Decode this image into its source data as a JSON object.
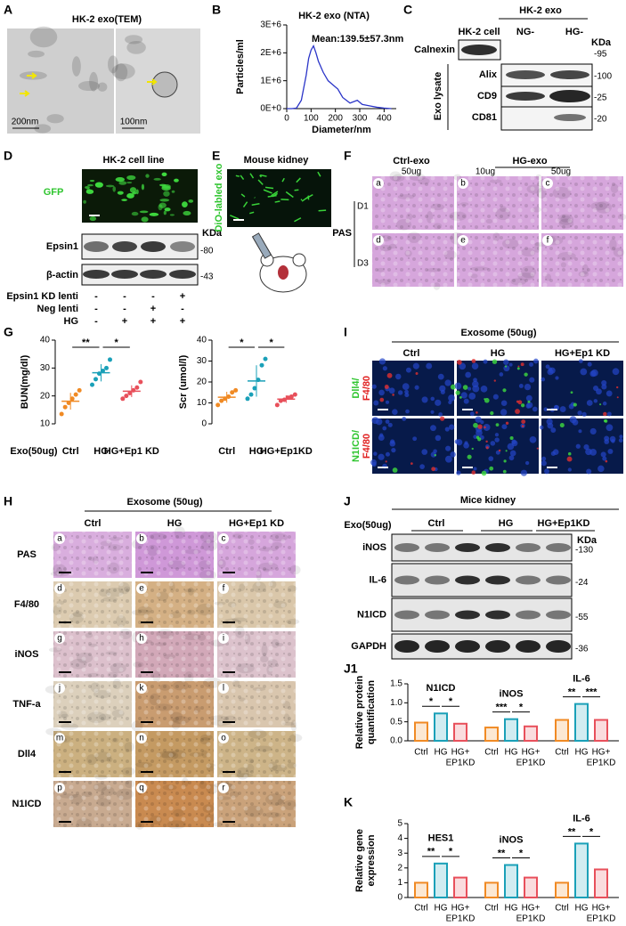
{
  "panel_labels": [
    "A",
    "B",
    "C",
    "D",
    "E",
    "F",
    "G",
    "I",
    "H",
    "J",
    "J1",
    "K"
  ],
  "A": {
    "title": "HK-2 exo(TEM)",
    "scale_left": "200nm",
    "scale_right": "100nm"
  },
  "C": {
    "group": "HK-2 exo",
    "lanes": [
      "HK-2 cell",
      "NG-",
      "HG-"
    ],
    "unit": "KDa",
    "rows": [
      "Calnexin",
      "Alix",
      "CD9",
      "CD81"
    ],
    "sizes": [
      "-95",
      "-100",
      "-25",
      "-20"
    ],
    "bracket": "Exo lysate"
  },
  "D": {
    "title": "HK-2 cell line",
    "stain": "GFP",
    "rows": [
      "Epsin1",
      "β-actin"
    ],
    "unit": "KDa",
    "sizes": [
      "-80",
      "-43"
    ],
    "conditions": [
      {
        "name": "Epsin1 KD lenti",
        "marks": [
          "-",
          "-",
          "-",
          "+"
        ]
      },
      {
        "name": "Neg lenti",
        "marks": [
          "-",
          "-",
          "+",
          "-"
        ]
      },
      {
        "name": "HG",
        "marks": [
          "-",
          "+",
          "+",
          "+"
        ]
      }
    ]
  },
  "E": {
    "title": "Mouse kidney",
    "stain": "DiO-labled exo"
  },
  "F": {
    "groups": [
      "Ctrl-exo",
      "HG-exo"
    ],
    "doses": [
      "50ug",
      "10ug",
      "50ug"
    ],
    "stain": "PAS",
    "days": [
      "D1",
      "D3"
    ],
    "tiles": [
      "a",
      "b",
      "c",
      "d",
      "e",
      "f"
    ]
  },
  "G": {
    "group_label": "Exo(50ug)"
  },
  "I": {
    "title": "Exosome (50ug)",
    "columns": [
      "Ctrl",
      "HG",
      "HG+Ep1 KD"
    ],
    "rows": [
      [
        "Dll4/",
        "F4/80"
      ],
      [
        "N1ICD/",
        "F4/80"
      ]
    ]
  },
  "H": {
    "title": "Exosome (50ug)",
    "columns": [
      "Ctrl",
      "HG",
      "HG+Ep1 KD"
    ],
    "rows": [
      "PAS",
      "F4/80",
      "iNOS",
      "TNF-a",
      "Dll4",
      "N1ICD"
    ],
    "tiles": [
      "a",
      "b",
      "c",
      "d",
      "e",
      "f",
      "g",
      "h",
      "i",
      "j",
      "k",
      "l",
      "m",
      "n",
      "o",
      "p",
      "q",
      "r"
    ]
  },
  "J": {
    "title": "Mice kidney",
    "group_label": "Exo(50ug)",
    "columns": [
      "Ctrl",
      "HG",
      "HG+Ep1KD"
    ],
    "unit": "KDa",
    "rows": [
      "iNOS",
      "IL-6",
      "N1ICD",
      "GAPDH"
    ],
    "sizes": [
      "-130",
      "-24",
      "-55",
      "-36"
    ]
  },
  "chart_data": [
    {
      "type": "line",
      "title": "HK-2 exo (NTA)",
      "x_label": "Diameter/nm",
      "y_label": "Particles/ml",
      "annotation": "Mean:139.5±57.3nm",
      "x": [
        0,
        20,
        40,
        60,
        80,
        90,
        100,
        110,
        120,
        130,
        150,
        170,
        190,
        210,
        230,
        260,
        290,
        310,
        340,
        370,
        400,
        430
      ],
      "series": [
        {
          "color": "#2b35c8",
          "values": [
            0,
            0,
            20000,
            300000,
            1200000,
            1800000,
            2100000,
            2250000,
            2000000,
            1700000,
            1300000,
            1000000,
            850000,
            700000,
            400000,
            200000,
            300000,
            150000,
            100000,
            50000,
            20000,
            0
          ]
        }
      ],
      "xlim": [
        0,
        450
      ],
      "ylim": [
        0,
        3000000
      ],
      "xticks": [
        0,
        100,
        200,
        300,
        400
      ],
      "yticks": [
        {
          "value": 0,
          "label": "0E+0"
        },
        {
          "value": 1000000,
          "label": "1E+6"
        },
        {
          "value": 2000000,
          "label": "2E+6"
        },
        {
          "value": 3000000,
          "label": "3E+6"
        }
      ]
    },
    {
      "type": "strip",
      "y_label": "BUN(mg/dl)",
      "categories": [
        "Ctrl",
        "HG",
        "HG+Ep1 KD"
      ],
      "colors": [
        "#f08a24",
        "#1aa0b8",
        "#e8505b"
      ],
      "points": [
        [
          13.5,
          16,
          17.5,
          19,
          20.5,
          22
        ],
        [
          24,
          26,
          28,
          29,
          30,
          33
        ],
        [
          19,
          20,
          21,
          22,
          23,
          25
        ]
      ],
      "means": [
        18.1,
        28.3,
        21.7
      ],
      "sd": [
        3.0,
        3.1,
        2.1
      ],
      "ylim": [
        10,
        40
      ],
      "yticks": [
        10,
        20,
        30,
        40
      ],
      "annotations": [
        "**",
        "*"
      ]
    },
    {
      "type": "strip",
      "y_label": "Scr (umol/l)",
      "categories": [
        "Ctrl",
        "HG",
        "HG+Ep1KD"
      ],
      "colors": [
        "#f08a24",
        "#1aa0b8",
        "#e8505b"
      ],
      "points": [
        [
          9,
          11,
          12,
          13,
          15,
          16
        ],
        [
          12,
          14,
          17,
          21,
          28,
          31
        ],
        [
          9,
          11,
          11.5,
          12.5,
          13,
          14
        ]
      ],
      "means": [
        12.7,
        20.5,
        11.8
      ],
      "sd": [
        2.6,
        7.5,
        1.8
      ],
      "ylim": [
        0,
        40
      ],
      "yticks": [
        0,
        10,
        20,
        30,
        40
      ],
      "annotations": [
        "*",
        "*"
      ]
    },
    {
      "type": "bar",
      "y_label": [
        "Relative protein",
        "quantification"
      ],
      "categories": [
        [
          "Ctrl"
        ],
        [
          "HG"
        ],
        [
          "HG+",
          "EP1KD"
        ]
      ],
      "colors": [
        "#f08a24",
        "#1aa0b8",
        "#e8505b"
      ],
      "series": [
        {
          "name": "N1ICD",
          "values": [
            0.48,
            0.72,
            0.45
          ]
        },
        {
          "name": "iNOS",
          "values": [
            0.35,
            0.57,
            0.38
          ]
        },
        {
          "name": "IL-6",
          "values": [
            0.55,
            0.97,
            0.55
          ]
        }
      ],
      "ylim": [
        0,
        1.5
      ],
      "yticks": [
        {
          "value": 0,
          "label": "0.0"
        },
        0.5,
        {
          "value": 1,
          "label": "1.0"
        },
        1.5
      ],
      "annotations": [
        [
          "*",
          "*"
        ],
        [
          "***",
          "*"
        ],
        [
          "**",
          "***"
        ]
      ]
    },
    {
      "type": "bar",
      "y_label": [
        "Relative gene",
        "expression"
      ],
      "categories": [
        [
          "Ctrl"
        ],
        [
          "HG"
        ],
        [
          "HG+",
          "EP1KD"
        ]
      ],
      "colors": [
        "#f08a24",
        "#1aa0b8",
        "#e8505b"
      ],
      "series": [
        {
          "name": "HES1",
          "values": [
            1.0,
            2.3,
            1.35
          ]
        },
        {
          "name": "iNOS",
          "values": [
            1.0,
            2.2,
            1.35
          ]
        },
        {
          "name": "IL-6",
          "values": [
            1.0,
            3.65,
            1.9
          ]
        }
      ],
      "ylim": [
        0,
        5
      ],
      "yticks": [
        0,
        1,
        2,
        3,
        4,
        5
      ],
      "annotations": [
        [
          "**",
          "*"
        ],
        [
          "**",
          "*"
        ],
        [
          "**",
          "*"
        ]
      ]
    }
  ]
}
